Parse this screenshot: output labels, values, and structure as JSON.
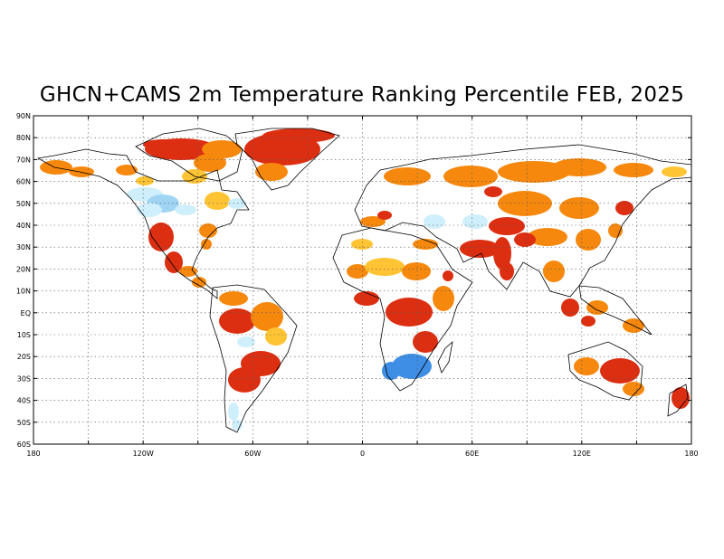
{
  "title": "GHCN+CAMS 2m Temperature Ranking Percentile FEB, 2025",
  "axes": {
    "lat_labels": [
      "90N",
      "80N",
      "70N",
      "60N",
      "50N",
      "40N",
      "30N",
      "20N",
      "10N",
      "EQ",
      "10S",
      "20S",
      "30S",
      "40S",
      "50S",
      "60S"
    ],
    "lon_labels": [
      "180",
      "120W",
      "60W",
      "0",
      "60E",
      "120E",
      "180"
    ]
  },
  "grid": {
    "style": "dotted",
    "lon_step_deg": 30,
    "lat_step_deg": 10
  },
  "colors": {
    "very_warm": "#dc2f12",
    "warm": "#f6880e",
    "mild_warm": "#ffc433",
    "neutral": "#ffffff",
    "mild_cool": "#cfeffc",
    "cool": "#9fd4f3",
    "very_cool": "#3f8ee6",
    "coast": "#000000"
  }
}
